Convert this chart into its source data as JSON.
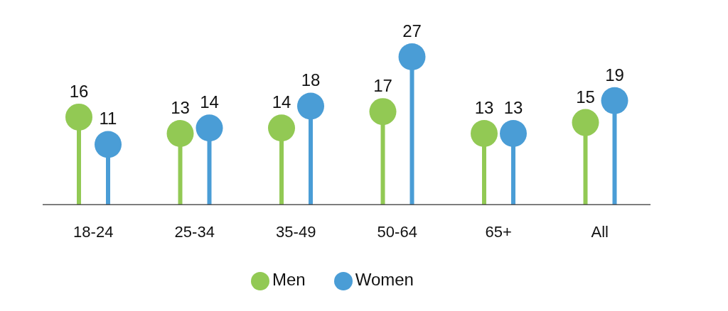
{
  "chart_data": {
    "type": "lollipop",
    "categories": [
      "18-24",
      "25-34",
      "35-49",
      "50-64",
      "65+",
      "All"
    ],
    "series": [
      {
        "name": "Men",
        "color": "#92c954",
        "values": [
          16,
          13,
          14,
          17,
          13,
          15
        ]
      },
      {
        "name": "Women",
        "color": "#4a9dd6",
        "values": [
          11,
          14,
          18,
          27,
          13,
          19
        ]
      }
    ],
    "data_labels": true,
    "legend": "bottom"
  }
}
